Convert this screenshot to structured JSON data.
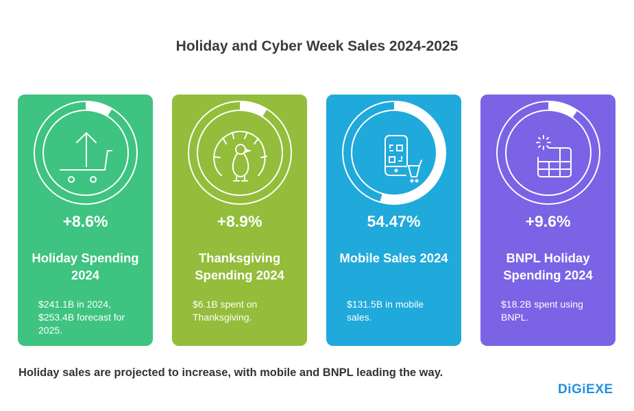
{
  "title": "Holiday and Cyber Week Sales 2024-2025",
  "cards": [
    {
      "percent_text": "+8.6%",
      "ring_fill_percent": 8.6,
      "label": "Holiday Spending 2024",
      "description": "$241.1B in 2024, $253.4B forecast for 2025.",
      "color": "#3EC381",
      "icon": "cart-up-arrow-icon"
    },
    {
      "percent_text": "+8.9%",
      "ring_fill_percent": 8.9,
      "label": "Thanksgiving Spending 2024",
      "description": "$6.1B spent on Thanksgiving.",
      "color": "#93BD3A",
      "icon": "turkey-icon"
    },
    {
      "percent_text": "54.47%",
      "ring_fill_percent": 54.47,
      "label": "Mobile Sales 2024",
      "description": "$131.5B in mobile sales.",
      "color": "#20A9DB",
      "icon": "mobile-qr-cart-icon"
    },
    {
      "percent_text": "+9.6%",
      "ring_fill_percent": 9.6,
      "label": "BNPL Holiday Spending 2024",
      "description": "$18.2B spent using BNPL.",
      "color": "#7B63E6",
      "icon": "calendar-sparkle-icon"
    }
  ],
  "footer": "Holiday sales are projected to increase, with mobile and BNPL leading the way.",
  "logo": "DiGiEXE"
}
